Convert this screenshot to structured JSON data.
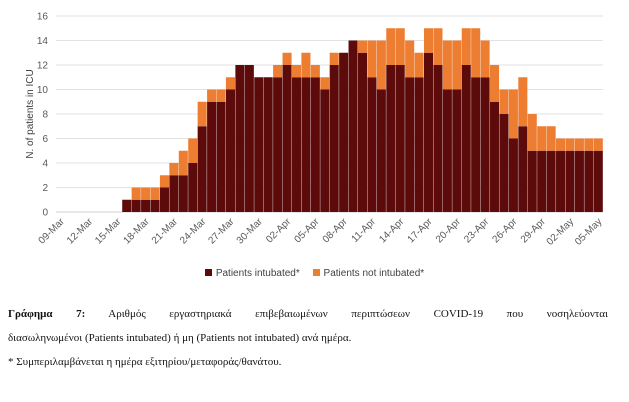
{
  "chart_data": {
    "type": "bar",
    "stacked": true,
    "ylabel": "N. of patients in ICU",
    "ylim": [
      0,
      16
    ],
    "yticks": [
      0,
      2,
      4,
      6,
      8,
      10,
      12,
      14,
      16
    ],
    "grid": true,
    "legend_position": "bottom",
    "x": [
      "09-Mar",
      "10-Mar",
      "11-Mar",
      "12-Mar",
      "13-Mar",
      "14-Mar",
      "15-Mar",
      "16-Mar",
      "17-Mar",
      "18-Mar",
      "19-Mar",
      "20-Mar",
      "21-Mar",
      "22-Mar",
      "23-Mar",
      "24-Mar",
      "25-Mar",
      "26-Mar",
      "27-Mar",
      "28-Mar",
      "29-Mar",
      "30-Mar",
      "31-Mar",
      "01-Apr",
      "02-Apr",
      "03-Apr",
      "04-Apr",
      "05-Apr",
      "06-Apr",
      "07-Apr",
      "08-Apr",
      "09-Apr",
      "10-Apr",
      "11-Apr",
      "12-Apr",
      "13-Apr",
      "14-Apr",
      "15-Apr",
      "16-Apr",
      "17-Apr",
      "18-Apr",
      "19-Apr",
      "20-Apr",
      "21-Apr",
      "22-Apr",
      "23-Apr",
      "24-Apr",
      "25-Apr",
      "26-Apr",
      "27-Apr",
      "28-Apr",
      "29-Apr",
      "30-Apr",
      "01-May",
      "02-May",
      "03-May",
      "04-May",
      "05-May"
    ],
    "xticks": [
      "09-Mar",
      "12-Mar",
      "15-Mar",
      "18-Mar",
      "21-Mar",
      "24-Mar",
      "27-Mar",
      "30-Mar",
      "02-Apr",
      "05-Apr",
      "08-Apr",
      "11-Apr",
      "14-Apr",
      "17-Apr",
      "20-Apr",
      "23-Apr",
      "26-Apr",
      "29-Apr",
      "02-May",
      "05-May"
    ],
    "series": [
      {
        "name": "Patients intubated*",
        "color": "#5c0a0a",
        "values": [
          0,
          0,
          0,
          0,
          0,
          0,
          0,
          1,
          1,
          1,
          1,
          2,
          3,
          3,
          4,
          7,
          9,
          9,
          10,
          12,
          12,
          11,
          11,
          11,
          12,
          11,
          11,
          11,
          10,
          12,
          13,
          14,
          13,
          11,
          10,
          12,
          12,
          11,
          11,
          13,
          12,
          10,
          10,
          12,
          11,
          11,
          9,
          8,
          6,
          7,
          5,
          5,
          5,
          5,
          5,
          5,
          5,
          5
        ]
      },
      {
        "name": "Patients not intubated*",
        "color": "#ed7d31",
        "values": [
          0,
          0,
          0,
          0,
          0,
          0,
          0,
          0,
          1,
          1,
          1,
          1,
          1,
          2,
          2,
          2,
          1,
          1,
          1,
          0,
          0,
          0,
          0,
          1,
          1,
          1,
          2,
          1,
          1,
          1,
          0,
          0,
          1,
          3,
          4,
          3,
          3,
          3,
          2,
          2,
          3,
          4,
          4,
          3,
          4,
          3,
          3,
          2,
          4,
          4,
          3,
          2,
          2,
          1,
          1,
          1,
          1,
          1
        ]
      }
    ]
  },
  "legend": {
    "intubated": "Patients intubated*",
    "not_intubated": "Patients not intubated*"
  },
  "caption": {
    "label": "Γράφημα 7:",
    "line1": "Αριθμός εργαστηριακά επιβεβαιωμένων περιπτώσεων COVID-19 που νοσηλεύονται",
    "line2": "διασωληνωμένοι (Patients intubated) ή μη (Patients not intubated) ανά ημέρα.",
    "footnote": "* Συμπεριλαμβάνεται η ημέρα εξιτηρίου/μεταφοράς/θανάτου."
  }
}
